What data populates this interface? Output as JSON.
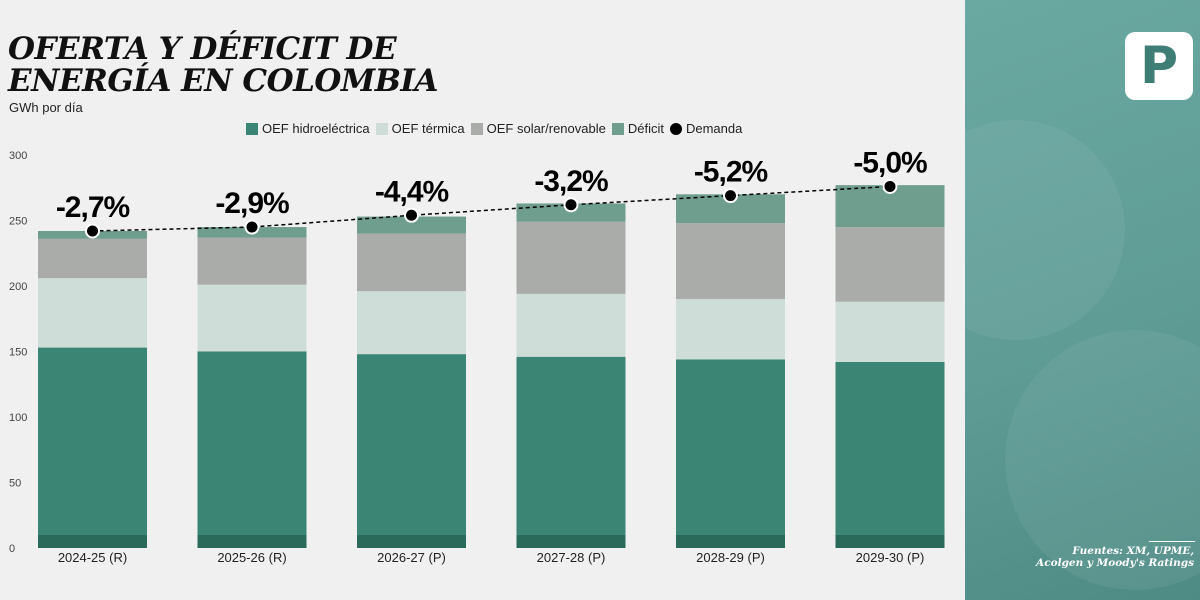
{
  "chart_data": {
    "type": "bar",
    "stacked": true,
    "title": [
      "OFERTA Y DÉFICIT DE",
      "ENERGÍA EN COLOMBIA"
    ],
    "ylabel": "GWh por día",
    "ylim": [
      0,
      300
    ],
    "yticks": [
      0,
      50,
      100,
      150,
      200,
      250,
      300
    ],
    "grid": false,
    "legend_position": "top",
    "categories": [
      "2024-25 (R)",
      "2025-26 (R)",
      "2026-27 (P)",
      "2027-28 (P)",
      "2028-29 (P)",
      "2029-30 (P)"
    ],
    "series": [
      {
        "name": "OEF hidroeléctrica",
        "color": "#3b8574",
        "values": [
          153,
          150,
          148,
          146,
          144,
          142
        ]
      },
      {
        "name": "OEF térmica",
        "color": "#cfddd8",
        "values": [
          53,
          51,
          48,
          48,
          46,
          46
        ]
      },
      {
        "name": "OEF solar/renovable",
        "color": "#a9aca8",
        "values": [
          30,
          36,
          44,
          55,
          58,
          57
        ]
      },
      {
        "name": "Déficit",
        "color": "#6f9e8f",
        "values": [
          6,
          8,
          13,
          14,
          22,
          32
        ]
      }
    ],
    "demand": {
      "name": "Demanda",
      "color": "#000000",
      "values": [
        242,
        245,
        254,
        262,
        269,
        276
      ]
    },
    "deficit_labels": [
      "-2,7%",
      "-2,9%",
      "-4,4%",
      "-3,2%",
      "-5,2%",
      "-5,0%"
    ]
  },
  "colors": {
    "panel": "#5f9c96",
    "base_stripe": "#2a6a5a",
    "logo": "#3f7e74"
  },
  "logo": {
    "letter": "P"
  },
  "sources": [
    "Fuentes: XM, UPME,",
    "Acolgen y Moody's Ratings"
  ]
}
